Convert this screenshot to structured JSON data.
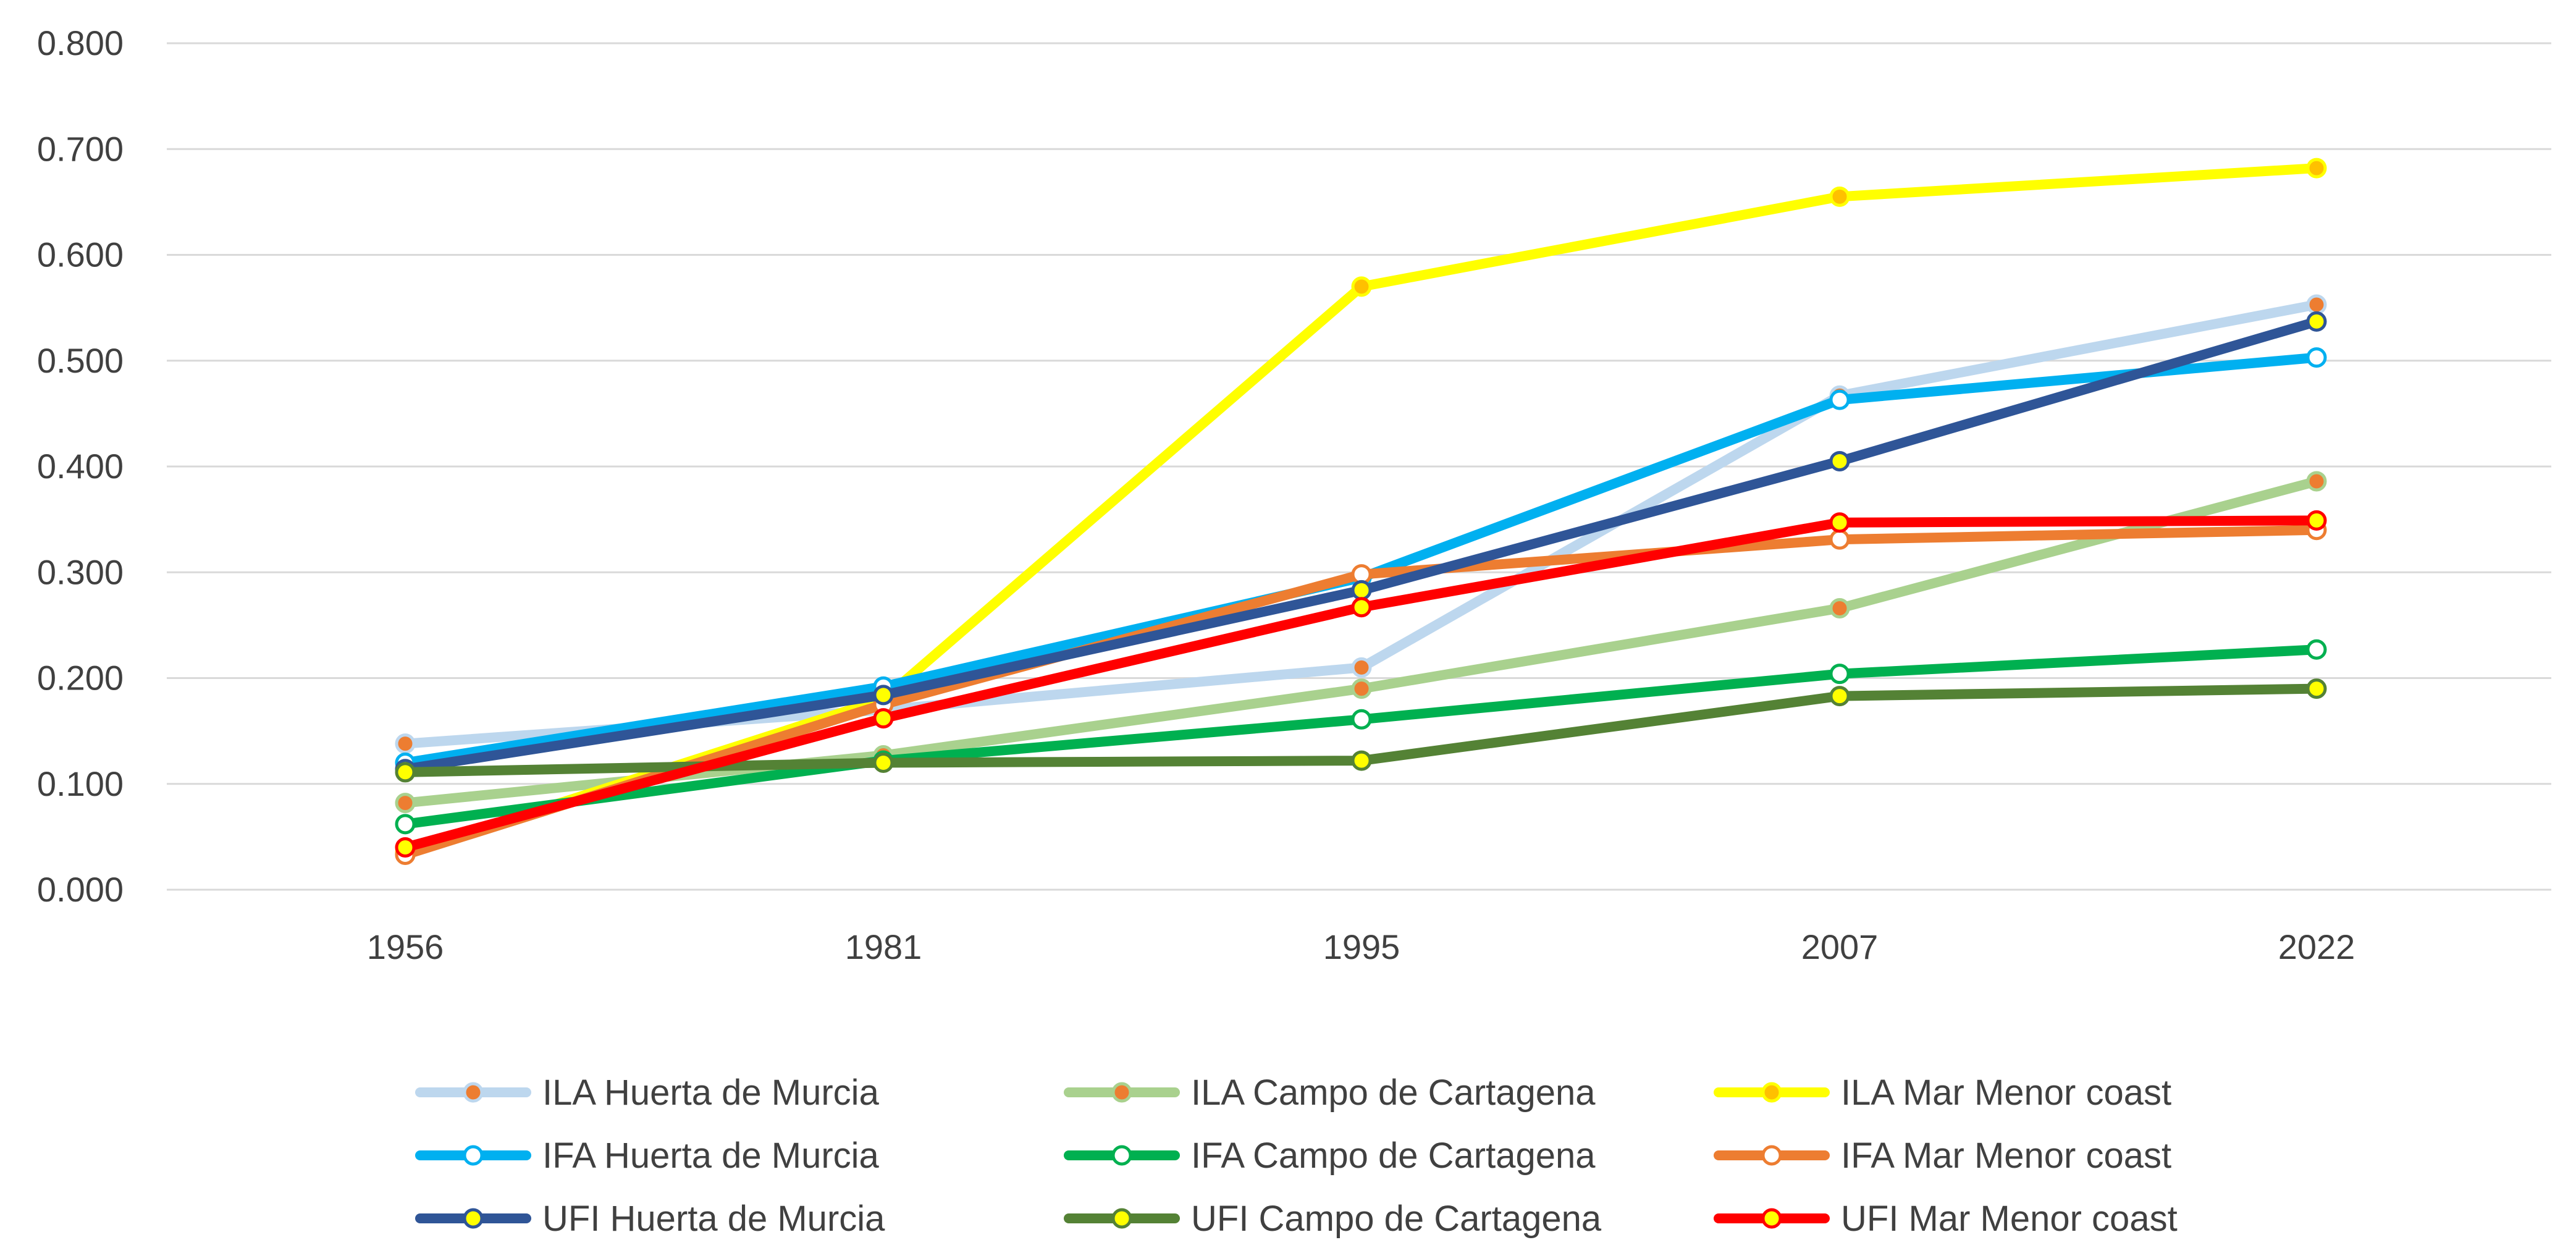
{
  "chart_data": {
    "type": "line",
    "title": "",
    "xlabel": "",
    "ylabel": "",
    "categories": [
      "1956",
      "1981",
      "1995",
      "2007",
      "2022"
    ],
    "ylim": [
      0,
      0.8
    ],
    "ytick_values": [
      0,
      0.1,
      0.2,
      0.3,
      0.4,
      0.5,
      0.6,
      0.7,
      0.8
    ],
    "ytick_labels": [
      "0.000",
      "0.100",
      "0.200",
      "0.300",
      "0.400",
      "0.500",
      "0.600",
      "0.700",
      "0.800"
    ],
    "grid": true,
    "legend_position": "bottom",
    "series": [
      {
        "name": "ILA Huerta de Murcia",
        "values": [
          0.138,
          0.17,
          0.21,
          0.467,
          0.553
        ],
        "line_color": "#BDD7EE",
        "marker_fill": "#ED7D31",
        "marker_stroke": "#BDD7EE"
      },
      {
        "name": "ILA Campo de Cartagena",
        "values": [
          0.082,
          0.127,
          0.19,
          0.266,
          0.386
        ],
        "line_color": "#A9D18E",
        "marker_fill": "#ED7D31",
        "marker_stroke": "#A9D18E"
      },
      {
        "name": "ILA Mar Menor coast",
        "values": [
          0.035,
          0.18,
          0.57,
          0.655,
          0.682
        ],
        "line_color": "#FFFF00",
        "marker_fill": "#FFC000",
        "marker_stroke": "#FFFF00"
      },
      {
        "name": "IFA Huerta de Murcia",
        "values": [
          0.12,
          0.192,
          0.295,
          0.463,
          0.503
        ],
        "line_color": "#00B0F0",
        "marker_fill": "#FFFFFF",
        "marker_stroke": "#00B0F0"
      },
      {
        "name": "IFA Campo de Cartagena",
        "values": [
          0.062,
          0.122,
          0.161,
          0.204,
          0.227
        ],
        "line_color": "#00B050",
        "marker_fill": "#FFFFFF",
        "marker_stroke": "#00B050"
      },
      {
        "name": "IFA Mar Menor coast",
        "values": [
          0.033,
          0.175,
          0.298,
          0.331,
          0.34
        ],
        "line_color": "#ED7D31",
        "marker_fill": "#FFFFFF",
        "marker_stroke": "#ED7D31"
      },
      {
        "name": "UFI Huerta de Murcia",
        "values": [
          0.114,
          0.184,
          0.283,
          0.405,
          0.537
        ],
        "line_color": "#2F5597",
        "marker_fill": "#FFFF00",
        "marker_stroke": "#2F5597"
      },
      {
        "name": "UFI Campo de Cartagena",
        "values": [
          0.111,
          0.12,
          0.122,
          0.183,
          0.19
        ],
        "line_color": "#548235",
        "marker_fill": "#FFFF00",
        "marker_stroke": "#548235"
      },
      {
        "name": "UFI Mar Menor coast",
        "values": [
          0.04,
          0.162,
          0.267,
          0.347,
          0.349
        ],
        "line_color": "#FF0000",
        "marker_fill": "#FFFF00",
        "marker_stroke": "#FF0000"
      }
    ]
  }
}
